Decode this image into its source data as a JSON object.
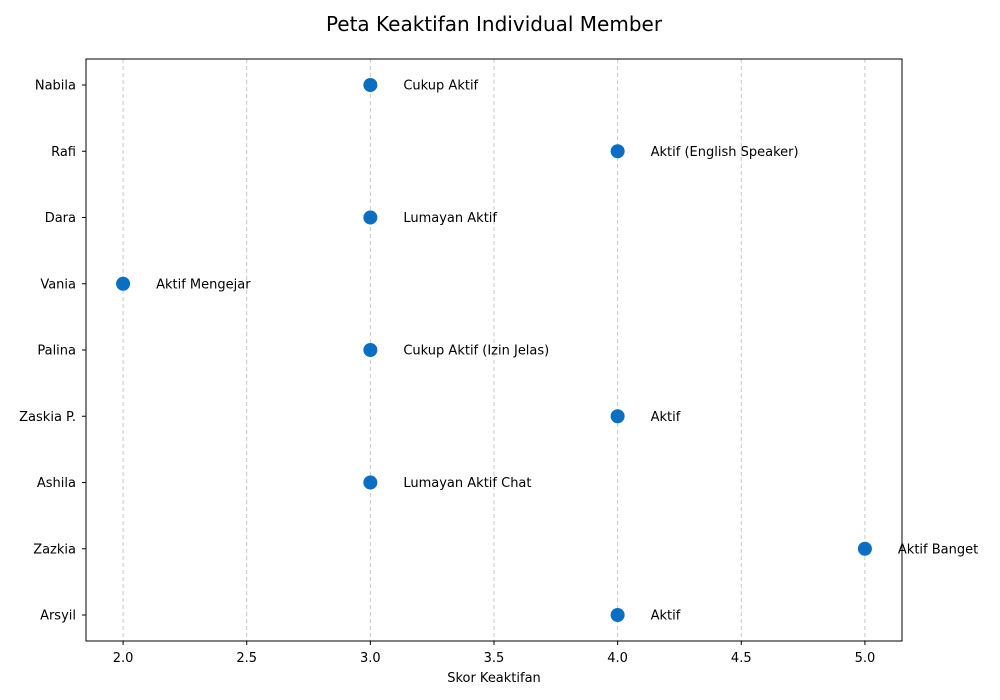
{
  "chart_data": {
    "type": "scatter",
    "title": "Peta Keaktifan Individual Member",
    "xlabel": "Skor Keaktifan",
    "ylabel": "",
    "xlim": [
      1.85,
      5.15
    ],
    "xticks": [
      2.0,
      2.5,
      3.0,
      3.5,
      4.0,
      4.5,
      5.0
    ],
    "xtick_labels": [
      "2.0",
      "2.5",
      "3.0",
      "3.5",
      "4.0",
      "4.5",
      "5.0"
    ],
    "grid": "x-dashed",
    "marker_color": "#0a6fc2",
    "categories": [
      "Arsyil",
      "Zazkia",
      "Ashila",
      "Zaskia P.",
      "Palina",
      "Vania",
      "Dara",
      "Rafi",
      "Nabila"
    ],
    "values": [
      4,
      5,
      3,
      4,
      3,
      2,
      3,
      4,
      3
    ],
    "annotations": [
      "Aktif",
      "Aktif Banget",
      "Lumayan Aktif Chat",
      "Aktif",
      "Cukup Aktif (Izin Jelas)",
      "Aktif Mengejar",
      "Lumayan Aktif",
      "Aktif (English Speaker)",
      "Cukup Aktif"
    ]
  }
}
